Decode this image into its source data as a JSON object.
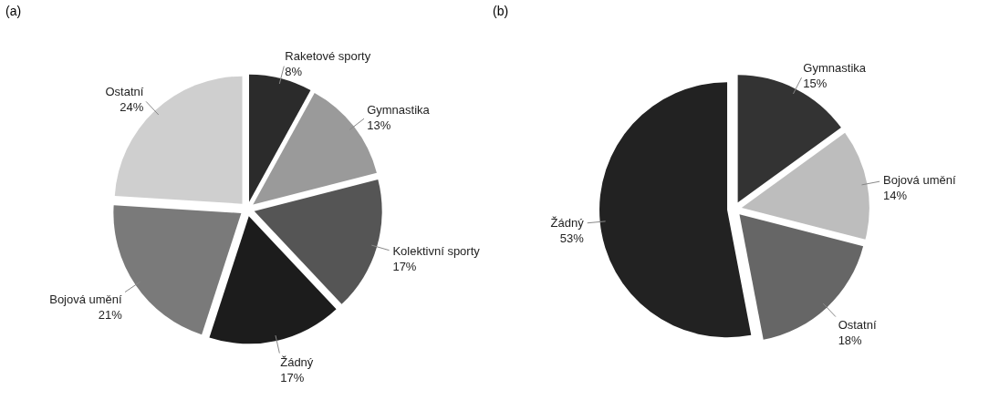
{
  "chart_data": [
    {
      "type": "pie",
      "title": "(a)",
      "categories": [
        "Raketové sporty",
        "Gymnastika",
        "Kolektivní sporty",
        "Žádný",
        "Bojová umění",
        "Ostatní"
      ],
      "values": [
        8,
        13,
        17,
        17,
        21,
        24
      ],
      "value_labels": [
        "8%",
        "13%",
        "17%",
        "17%",
        "21%",
        "24%"
      ],
      "colors": [
        "#2b2b2b",
        "#9a9a9a",
        "#555555",
        "#1c1c1c",
        "#7a7a7a",
        "#cfcfcf"
      ],
      "legend": false
    },
    {
      "type": "pie",
      "title": "(b)",
      "categories": [
        "Gymnastika",
        "Bojová umění",
        "Ostatní",
        "Žádný"
      ],
      "values": [
        15,
        14,
        18,
        53
      ],
      "value_labels": [
        "15%",
        "14%",
        "18%",
        "53%"
      ],
      "colors": [
        "#333333",
        "#bdbdbd",
        "#666666",
        "#222222"
      ],
      "legend": false
    }
  ]
}
